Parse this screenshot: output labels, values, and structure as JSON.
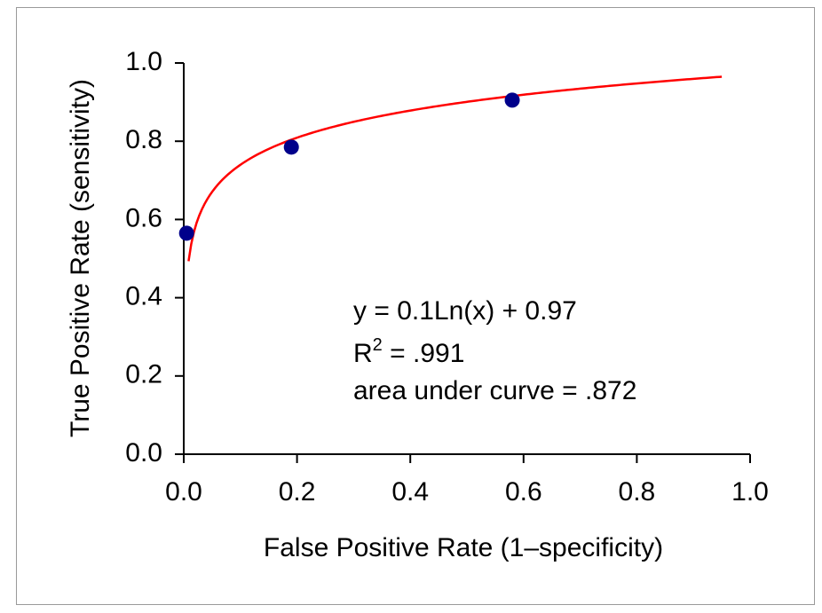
{
  "chart_data": {
    "type": "scatter",
    "xlabel": "False Positive Rate (1–specificity)",
    "ylabel": "True Positive Rate (sensitivity)",
    "xlim": [
      0.0,
      1.0
    ],
    "ylim": [
      0.0,
      1.0
    ],
    "x_ticks": [
      "0.0",
      "0.2",
      "0.4",
      "0.6",
      "0.8",
      "1.0"
    ],
    "y_ticks": [
      "0.0",
      "0.2",
      "0.4",
      "0.6",
      "0.8",
      "1.0"
    ],
    "grid": false,
    "series": [
      {
        "type": "scatter",
        "color": "#00008b",
        "points": [
          {
            "x": 0.005,
            "y": 0.565
          },
          {
            "x": 0.19,
            "y": 0.785
          },
          {
            "x": 0.58,
            "y": 0.905
          }
        ]
      },
      {
        "type": "line",
        "color": "#ff0000",
        "fit": "0.1*ln(x)+0.97",
        "x_range": [
          0.0085,
          0.95
        ]
      }
    ],
    "annotations": {
      "equation": "y = 0.1Ln(x) + 0.97",
      "r_squared_prefix": "R",
      "r_squared_exponent": "2",
      "r_squared_value": " = .991",
      "area": "area under curve = .872"
    }
  }
}
